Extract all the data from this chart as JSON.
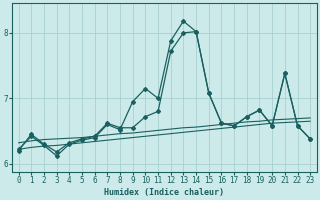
{
  "xlabel": "Humidex (Indice chaleur)",
  "background_color": "#cceaea",
  "grid_color": "#aad0d0",
  "line_color": "#1a6060",
  "x_values": [
    0,
    1,
    2,
    3,
    4,
    5,
    6,
    7,
    8,
    9,
    10,
    11,
    12,
    13,
    14,
    15,
    16,
    17,
    18,
    19,
    20,
    21,
    22,
    23
  ],
  "line_jagged1": [
    6.2,
    6.45,
    6.3,
    6.18,
    6.32,
    6.38,
    6.42,
    6.62,
    6.55,
    6.55,
    6.72,
    6.8,
    7.72,
    8.0,
    8.02,
    7.08,
    6.62,
    6.58,
    6.72,
    6.82,
    6.58,
    7.38,
    6.58,
    6.38
  ],
  "line_jagged2": [
    6.22,
    6.42,
    6.28,
    6.12,
    6.3,
    6.36,
    6.4,
    6.6,
    6.52,
    6.95,
    7.15,
    7.0,
    7.88,
    8.18,
    8.02,
    7.08,
    6.62,
    6.58,
    6.72,
    6.82,
    6.58,
    7.38,
    6.58,
    6.38
  ],
  "line_flat1": [
    6.32,
    6.35,
    6.37,
    6.38,
    6.39,
    6.4,
    6.42,
    6.44,
    6.46,
    6.47,
    6.49,
    6.51,
    6.53,
    6.55,
    6.56,
    6.58,
    6.6,
    6.62,
    6.64,
    6.65,
    6.67,
    6.68,
    6.69,
    6.7
  ],
  "line_flat2": [
    6.22,
    6.25,
    6.27,
    6.28,
    6.3,
    6.32,
    6.34,
    6.36,
    6.38,
    6.4,
    6.42,
    6.44,
    6.46,
    6.48,
    6.5,
    6.52,
    6.54,
    6.56,
    6.58,
    6.6,
    6.62,
    6.63,
    6.64,
    6.65
  ],
  "xlim": [
    -0.5,
    23.5
  ],
  "ylim": [
    5.88,
    8.45
  ],
  "yticks": [
    6,
    7,
    8
  ],
  "xticks": [
    0,
    1,
    2,
    3,
    4,
    5,
    6,
    7,
    8,
    9,
    10,
    11,
    12,
    13,
    14,
    15,
    16,
    17,
    18,
    19,
    20,
    21,
    22,
    23
  ]
}
